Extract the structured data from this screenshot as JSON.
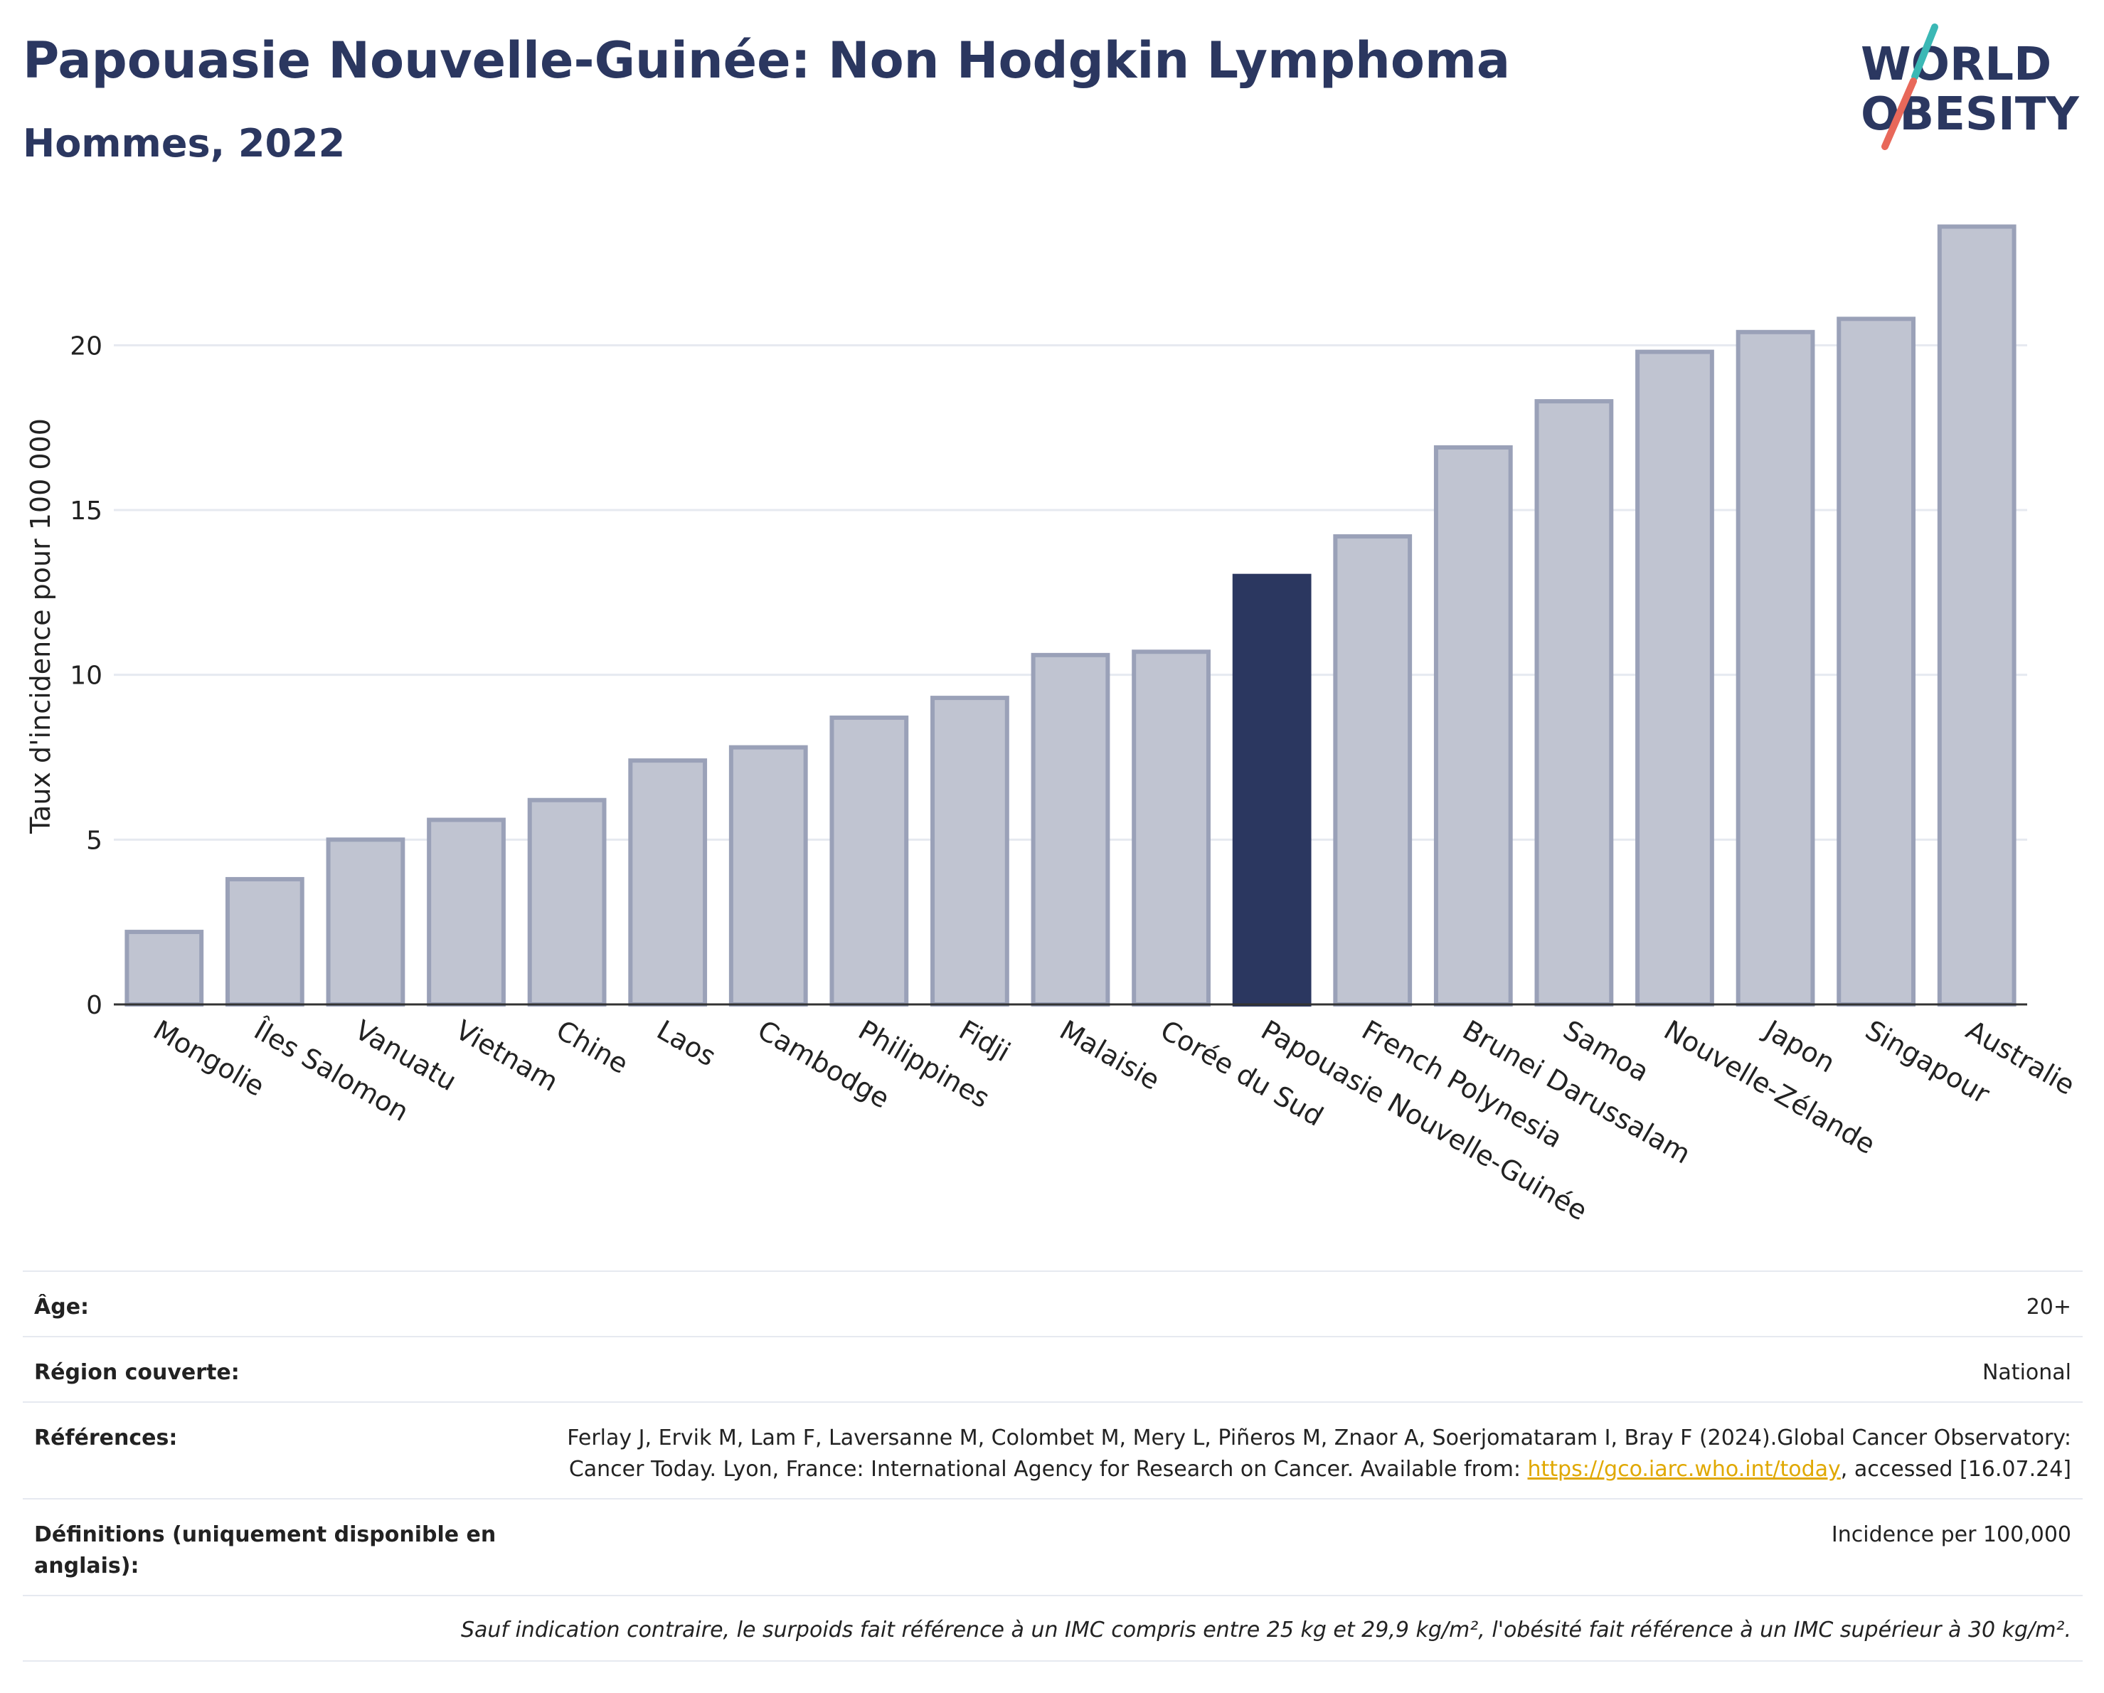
{
  "header": {
    "title": "Papouasie Nouvelle-Guinée: Non Hodgkin Lymphoma",
    "subtitle": "Hommes, 2022"
  },
  "logo": {
    "line1": "WORLD",
    "line2": "OBESITY",
    "accent_teal": "#3bb8b5",
    "accent_red": "#e8685a",
    "text_color": "#2b3760"
  },
  "chart_data": {
    "type": "bar",
    "title": "Papouasie Nouvelle-Guinée: Non Hodgkin Lymphoma",
    "subtitle": "Hommes, 2022",
    "xlabel": "",
    "ylabel": "Taux d'incidence pour 100 000",
    "ylim": [
      0,
      24
    ],
    "yticks": [
      0,
      5,
      10,
      15,
      20
    ],
    "grid": true,
    "categories": [
      "Mongolie",
      "Îles Salomon",
      "Vanuatu",
      "Vietnam",
      "Chine",
      "Laos",
      "Cambodge",
      "Philippines",
      "Fidji",
      "Malaisie",
      "Corée du Sud",
      "Papouasie Nouvelle-Guinée",
      "French Polynesia",
      "Brunei Darussalam",
      "Samoa",
      "Nouvelle-Zélande",
      "Japon",
      "Singapour",
      "Australie"
    ],
    "values": [
      2.2,
      3.8,
      5.0,
      5.6,
      6.2,
      7.4,
      7.8,
      8.7,
      9.3,
      10.6,
      10.7,
      13.0,
      14.2,
      16.9,
      18.3,
      19.8,
      20.4,
      20.8,
      23.6
    ],
    "highlight": "Papouasie Nouvelle-Guinée",
    "colors": {
      "bar": "#c0c4d1",
      "bar_border": "#9aa1b8",
      "highlight": "#2b3760"
    }
  },
  "meta": {
    "age_label": "Âge:",
    "age_value": "20+",
    "region_label": "Région couverte:",
    "region_value": "National",
    "refs_label": "Références:",
    "refs_text": "Ferlay J, Ervik M, Lam F, Laversanne M, Colombet M, Mery L, Piñeros M, Znaor A, Soerjomataram I, Bray F (2024).Global Cancer Observatory: Cancer Today. Lyon, France: International Agency for Research on Cancer. Available from: ",
    "refs_link": "https://gco.iarc.who.int/today",
    "refs_tail": ", accessed [16.07.24]",
    "defs_label": "Définitions (uniquement disponible en anglais):",
    "defs_value": "Incidence per 100,000",
    "note": "Sauf indication contraire, le surpoids fait référence à un IMC compris entre 25 kg et 29,9 kg/m², l'obésité fait référence à un IMC supérieur à 30 kg/m²."
  }
}
